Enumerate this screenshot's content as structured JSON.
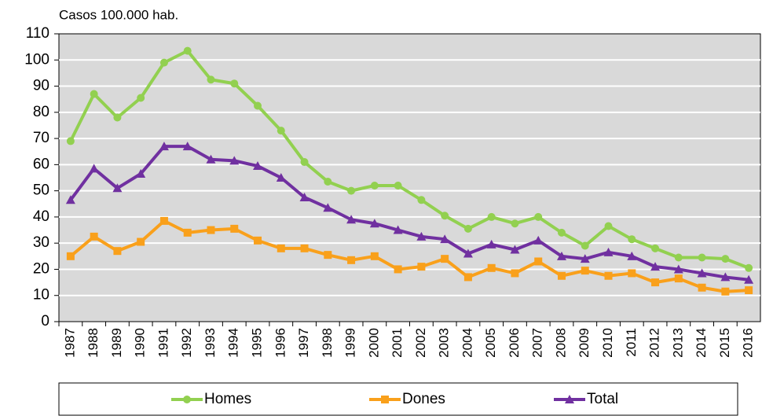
{
  "chart_data": {
    "type": "line",
    "y_axis_label": "Casos 100.000 hab.",
    "categories": [
      "1987",
      "1988",
      "1989",
      "1990",
      "1991",
      "1992",
      "1993",
      "1994",
      "1995",
      "1996",
      "1997",
      "1998",
      "1999",
      "2000",
      "2001",
      "2002",
      "2003",
      "2004",
      "2005",
      "2006",
      "2007",
      "2008",
      "2009",
      "2010",
      "2011",
      "2012",
      "2013",
      "2014",
      "2015",
      "2016"
    ],
    "series": [
      {
        "name": "Homes",
        "color": "#92d050",
        "marker": "circle",
        "values": [
          69,
          87,
          78,
          85.5,
          99,
          103.5,
          92.5,
          91,
          82.5,
          73,
          61,
          53.5,
          50,
          52,
          52,
          46.5,
          40.5,
          35.5,
          40,
          37.5,
          40,
          34,
          29,
          36.5,
          31.5,
          28,
          24.5,
          24.5,
          24,
          20.5
        ]
      },
      {
        "name": "Dones",
        "color": "#f9a01b",
        "marker": "square",
        "values": [
          25,
          32.5,
          27,
          30.5,
          38.5,
          34,
          35,
          35.5,
          31,
          28,
          28,
          25.5,
          23.5,
          25,
          20,
          21,
          24,
          17,
          20.5,
          18.5,
          23,
          17.5,
          19.5,
          17.5,
          18.5,
          15,
          16.5,
          13,
          11.5,
          12
        ]
      },
      {
        "name": "Total",
        "color": "#7030a0",
        "marker": "triangle",
        "values": [
          46.5,
          58.5,
          51,
          56.5,
          67,
          67,
          62,
          61.5,
          59.5,
          55,
          47.5,
          43.5,
          39,
          37.5,
          35,
          32.5,
          31.5,
          26,
          29.5,
          27.5,
          31,
          25,
          24,
          26.5,
          25,
          21,
          20,
          18.5,
          17,
          16
        ]
      }
    ],
    "ylim": [
      0,
      110
    ],
    "yticks": [
      0,
      10,
      20,
      30,
      40,
      50,
      60,
      70,
      80,
      90,
      100,
      110
    ],
    "grid": true
  }
}
